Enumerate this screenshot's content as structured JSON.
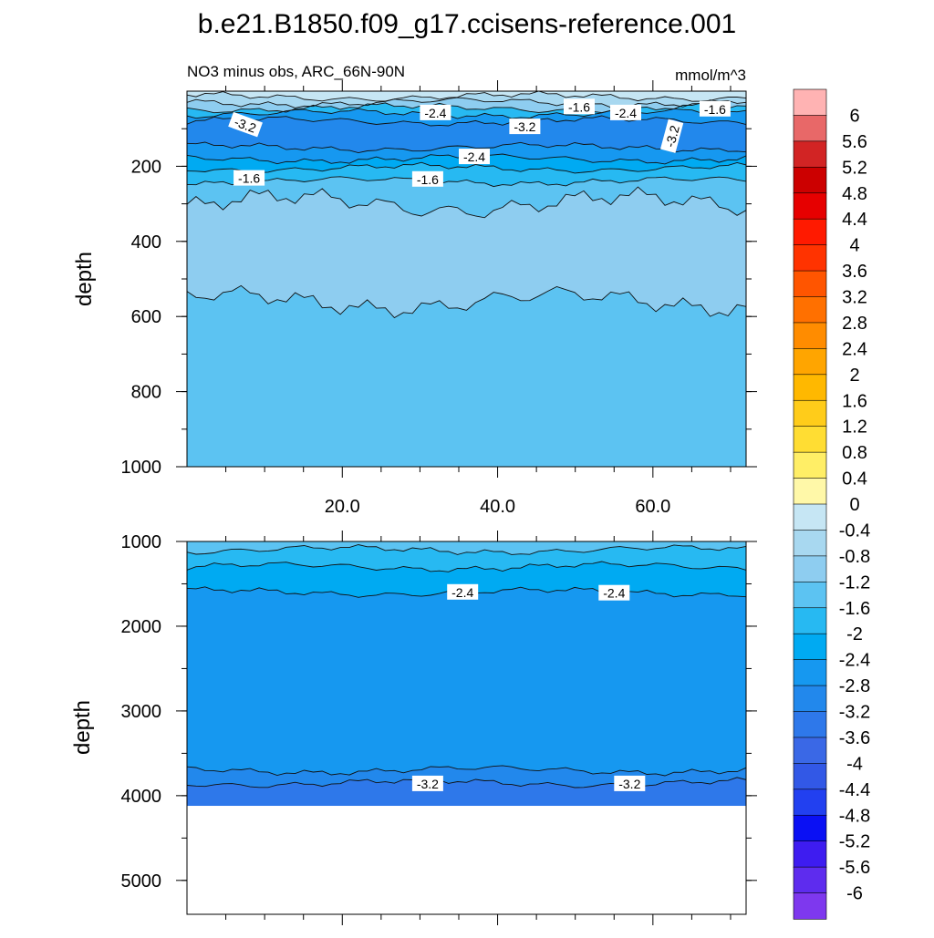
{
  "figure": {
    "title": "b.e21.B1850.f09_g17.ccisens-reference.001",
    "subtitle_left": "NO3 minus obs, ARC_66N-90N",
    "subtitle_right": "mmol/m^3"
  },
  "chart_data": [
    {
      "type": "heatmap",
      "panel": "upper",
      "xlim": [
        0,
        72
      ],
      "ylim": [
        1000,
        0
      ],
      "ylabel": "depth",
      "xticks": [
        20,
        40,
        60
      ],
      "xtick_labels": [
        "20.0",
        "40.0",
        "60.0"
      ],
      "yticks": [
        200,
        400,
        600,
        800,
        1000
      ],
      "ytick_labels": [
        "200",
        "400",
        "600",
        "800",
        "1000"
      ],
      "bands": [
        {
          "top": 0,
          "bottom": 15,
          "value": -0.4
        },
        {
          "top": 15,
          "bottom": 30,
          "value": -0.8
        },
        {
          "top": 30,
          "bottom": 45,
          "value": -1.2
        },
        {
          "top": 45,
          "bottom": 60,
          "value": -2.0
        },
        {
          "top": 60,
          "bottom": 80,
          "value": -2.8
        },
        {
          "top": 80,
          "bottom": 150,
          "value": -3.2
        },
        {
          "top": 150,
          "bottom": 180,
          "value": -2.8
        },
        {
          "top": 180,
          "bottom": 205,
          "value": -2.4
        },
        {
          "top": 205,
          "bottom": 240,
          "value": -2.0
        },
        {
          "top": 240,
          "bottom": 300,
          "value": -1.6
        },
        {
          "top": 300,
          "bottom": 560,
          "value": -1.2
        },
        {
          "top": 560,
          "bottom": 1000,
          "value": -1.6
        }
      ],
      "contour_labels": [
        {
          "text": "-3.2",
          "x": 7.5,
          "depth": 90,
          "rotate": 20
        },
        {
          "text": "-2.4",
          "x": 32,
          "depth": 58,
          "rotate": 0
        },
        {
          "text": "-3.2",
          "x": 43.5,
          "depth": 95,
          "rotate": 0
        },
        {
          "text": "-1.6",
          "x": 50.5,
          "depth": 42,
          "rotate": 0
        },
        {
          "text": "-2.4",
          "x": 56.5,
          "depth": 58,
          "rotate": 0
        },
        {
          "text": "-3.2",
          "x": 62.5,
          "depth": 120,
          "rotate": -75
        },
        {
          "text": "-1.6",
          "x": 68,
          "depth": 48,
          "rotate": 0
        },
        {
          "text": "-2.4",
          "x": 37,
          "depth": 175,
          "rotate": 0
        },
        {
          "text": "-1.6",
          "x": 8,
          "depth": 232,
          "rotate": 0
        },
        {
          "text": "-1.6",
          "x": 31,
          "depth": 235,
          "rotate": 0
        }
      ]
    },
    {
      "type": "heatmap",
      "panel": "lower",
      "xlim": [
        0,
        72
      ],
      "ylim": [
        5400,
        1000
      ],
      "ylabel": "depth",
      "yticks": [
        1000,
        2000,
        3000,
        4000,
        5000
      ],
      "ytick_labels": [
        "1000",
        "2000",
        "3000",
        "4000",
        "5000"
      ],
      "seafloor_depth": 4120,
      "bands": [
        {
          "top": 1000,
          "bottom": 1100,
          "value": -1.6
        },
        {
          "top": 1100,
          "bottom": 1300,
          "value": -2.0
        },
        {
          "top": 1300,
          "bottom": 1600,
          "value": -2.4
        },
        {
          "top": 1600,
          "bottom": 3700,
          "value": -2.8
        },
        {
          "top": 3700,
          "bottom": 3850,
          "value": -3.2
        },
        {
          "top": 3850,
          "bottom": 4120,
          "value": -3.6
        }
      ],
      "contour_labels": [
        {
          "text": "-2.4",
          "x": 35.5,
          "depth": 1600
        },
        {
          "text": "-2.4",
          "x": 55,
          "depth": 1610
        },
        {
          "text": "-3.2",
          "x": 31,
          "depth": 3860
        },
        {
          "text": "-3.2",
          "x": 57,
          "depth": 3860
        }
      ]
    }
  ],
  "colorbar": {
    "levels": [
      "6",
      "5.6",
      "5.2",
      "4.8",
      "4.4",
      "4",
      "3.6",
      "3.2",
      "2.8",
      "2.4",
      "2",
      "1.6",
      "1.2",
      "0.8",
      "0.4",
      "0",
      "-0.4",
      "-0.8",
      "-1.2",
      "-1.6",
      "-2",
      "-2.4",
      "-2.8",
      "-3.2",
      "-3.6",
      "-4",
      "-4.4",
      "-4.8",
      "-5.2",
      "-5.6",
      "-6"
    ],
    "colors": [
      "#ffb3b3",
      "#e86868",
      "#d22424",
      "#cc0000",
      "#e60000",
      "#ff1a00",
      "#ff3300",
      "#ff5500",
      "#ff7000",
      "#ff8c00",
      "#ffa500",
      "#ffb800",
      "#ffcc1a",
      "#ffdd33",
      "#ffee66",
      "#fff8a8",
      "#c6e6f4",
      "#a8d8f0",
      "#8ecdf0",
      "#5cc3f2",
      "#27b9f2",
      "#00aaf2",
      "#1698f0",
      "#2288ec",
      "#2e78ea",
      "#3a68e6",
      "#3258e6",
      "#2240f0",
      "#0a10f4",
      "#3e1cf0",
      "#5e2cee",
      "#7e38ee"
    ]
  }
}
